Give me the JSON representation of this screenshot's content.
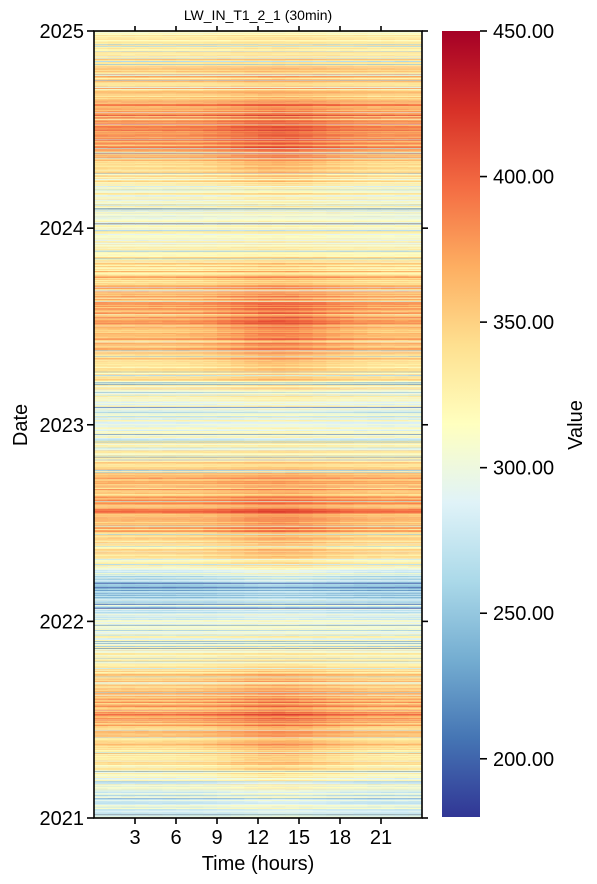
{
  "chart_data": {
    "type": "heatmap",
    "title": "LW_IN_T1_2_1 (30min)",
    "xlabel": "Time (hours)",
    "ylabel": "Date",
    "colorbar_label": "Value",
    "x_ticks": [
      3,
      6,
      9,
      12,
      15,
      18,
      21
    ],
    "x_range": [
      0,
      24
    ],
    "y_ticks": [
      "2021",
      "2022",
      "2023",
      "2024",
      "2025"
    ],
    "y_range": [
      "2021-01-01",
      "2025-01-01"
    ],
    "color_range": [
      180,
      450
    ],
    "colorbar_ticks": [
      "200.00",
      "250.00",
      "300.00",
      "350.00",
      "400.00",
      "450.00"
    ],
    "colormap": "RdYlBu_r",
    "colormap_stops": [
      "#313695",
      "#4575b4",
      "#74add1",
      "#abd9e9",
      "#e0f3f8",
      "#ffffbf",
      "#fee090",
      "#fdae61",
      "#f46d43",
      "#d73027",
      "#a50026"
    ],
    "seasonal_profile": [
      {
        "date": "2021-01-01",
        "night": 286,
        "day": 292
      },
      {
        "date": "2021-03-01",
        "night": 300,
        "day": 315
      },
      {
        "date": "2021-05-01",
        "night": 335,
        "day": 360
      },
      {
        "date": "2021-07-15",
        "night": 375,
        "day": 395
      },
      {
        "date": "2021-09-15",
        "night": 345,
        "day": 360
      },
      {
        "date": "2021-11-01",
        "night": 315,
        "day": 320
      },
      {
        "date": "2022-01-15",
        "night": 290,
        "day": 295
      },
      {
        "date": "2022-03-01",
        "night": 245,
        "day": 255
      },
      {
        "date": "2022-05-01",
        "night": 330,
        "day": 350
      },
      {
        "date": "2022-07-15",
        "night": 370,
        "day": 390
      },
      {
        "date": "2022-09-15",
        "night": 360,
        "day": 370
      },
      {
        "date": "2022-11-15",
        "night": 320,
        "day": 325
      },
      {
        "date": "2023-01-15",
        "night": 300,
        "day": 305
      },
      {
        "date": "2023-03-15",
        "night": 320,
        "day": 335
      },
      {
        "date": "2023-05-15",
        "night": 350,
        "day": 375
      },
      {
        "date": "2023-07-15",
        "night": 375,
        "day": 405
      },
      {
        "date": "2023-09-15",
        "night": 355,
        "day": 370
      },
      {
        "date": "2023-11-15",
        "night": 325,
        "day": 330
      },
      {
        "date": "2024-01-15",
        "night": 300,
        "day": 305
      },
      {
        "date": "2024-03-15",
        "night": 315,
        "day": 330
      },
      {
        "date": "2024-05-15",
        "night": 360,
        "day": 385
      },
      {
        "date": "2024-07-15",
        "night": 385,
        "day": 405
      },
      {
        "date": "2024-09-15",
        "night": 355,
        "day": 365
      },
      {
        "date": "2024-11-15",
        "night": 340,
        "day": 345
      },
      {
        "date": "2025-01-01",
        "night": 330,
        "day": 335
      }
    ]
  }
}
